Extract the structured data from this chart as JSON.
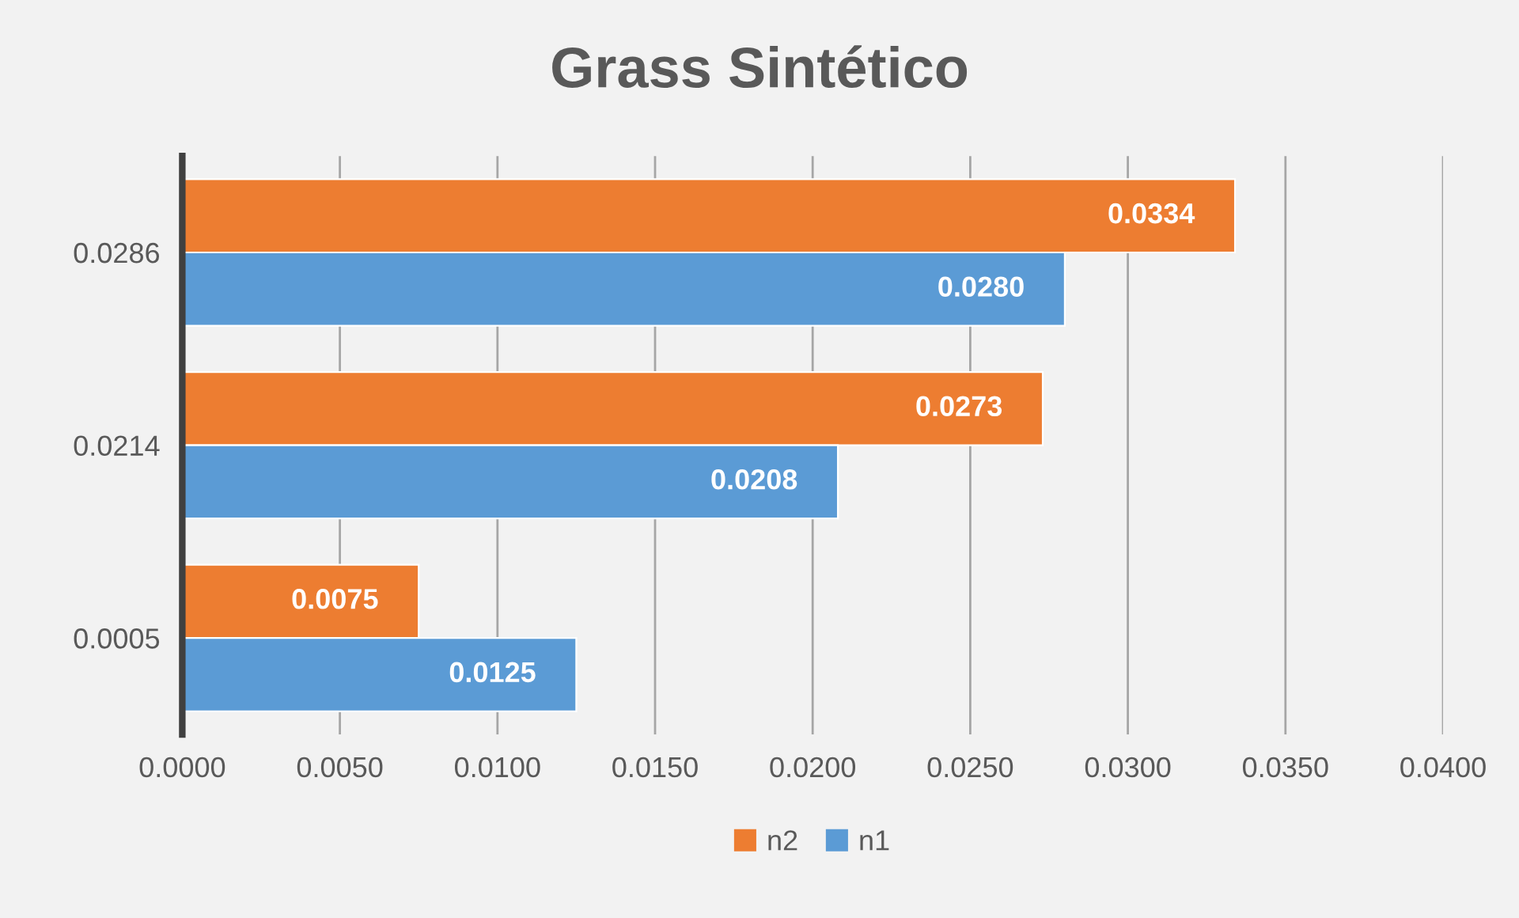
{
  "chart_data": {
    "type": "bar",
    "orientation": "horizontal",
    "title": "Grass Sintético",
    "categories": [
      "0.0286",
      "0.0214",
      "0.0005"
    ],
    "series": [
      {
        "name": "n2",
        "color": "#ed7d31",
        "values": [
          0.0334,
          0.0273,
          0.0075
        ],
        "value_labels": [
          "0.0334",
          "0.0273",
          "0.0075"
        ]
      },
      {
        "name": "n1",
        "color": "#5b9bd5",
        "values": [
          0.028,
          0.0208,
          0.0125
        ],
        "value_labels": [
          "0.0280",
          "0.0208",
          "0.0125"
        ]
      }
    ],
    "xlim": [
      0,
      0.04
    ],
    "xticks": [
      {
        "value": 0,
        "label": "0.0000"
      },
      {
        "value": 0.005,
        "label": "0.0050"
      },
      {
        "value": 0.01,
        "label": "0.0100"
      },
      {
        "value": 0.015,
        "label": "0.0150"
      },
      {
        "value": 0.02,
        "label": "0.0200"
      },
      {
        "value": 0.025,
        "label": "0.0250"
      },
      {
        "value": 0.03,
        "label": "0.0300"
      },
      {
        "value": 0.035,
        "label": "0.0350"
      },
      {
        "value": 0.04,
        "label": "0.0400"
      }
    ],
    "grid": "x",
    "legend": "bottom"
  }
}
